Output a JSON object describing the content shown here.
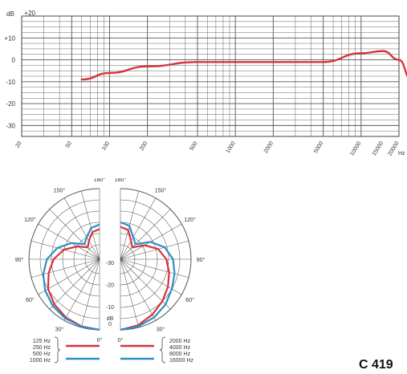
{
  "colors": {
    "red": "#d8323c",
    "blue": "#2b8fc8",
    "grid": "#555555"
  },
  "model": "C 419",
  "chart_data": [
    {
      "type": "line",
      "xscale": "log",
      "ylabel": "dB",
      "xunit": "Hz",
      "xlim": [
        20,
        20000
      ],
      "ylim": [
        -35,
        20
      ],
      "x_ticks": [
        "20",
        "50",
        "100",
        "200",
        "500",
        "1000",
        "2000",
        "5000",
        "10000",
        "15000",
        "20000"
      ],
      "y_ticks": [
        "+20",
        "+10",
        "0",
        "-10",
        "-20",
        "-30"
      ],
      "grid": true,
      "series": [
        {
          "color": "#d8323c",
          "x": [
            60,
            100,
            200,
            500,
            1000,
            2000,
            5000,
            10000,
            15000,
            20000,
            25000
          ],
          "y": [
            -9,
            -6,
            -3,
            -1,
            -1,
            -1,
            -1,
            3,
            4,
            0,
            -9
          ]
        }
      ]
    },
    {
      "type": "polar",
      "angle_labels_left": [
        "180°",
        "150°",
        "120°",
        "90°",
        "60°",
        "30°",
        "0°"
      ],
      "angle_labels_right": [
        "180°",
        "150°",
        "120°",
        "90°",
        "60°",
        "30°",
        "0°"
      ],
      "db_labels": [
        "-30",
        "-20",
        "-10",
        "dB",
        "0"
      ],
      "legend_left": [
        "125 Hz",
        "250 Hz",
        "500 Hz",
        "1000 Hz"
      ],
      "legend_right": [
        "2000 Hz",
        "4000 Hz",
        "8000 Hz",
        "16000 Hz"
      ],
      "left_series": [
        {
          "name": "250 Hz",
          "color": "#d8323c",
          "angles": [
            0,
            15,
            30,
            45,
            60,
            75,
            90,
            105,
            120,
            135,
            150,
            165,
            180
          ],
          "db": [
            0,
            -0.5,
            -1.5,
            -3,
            -5,
            -8,
            -11,
            -15,
            -20,
            -24,
            -22,
            -19,
            -18
          ]
        },
        {
          "name": "1000 Hz",
          "color": "#2b8fc8",
          "angles": [
            0,
            15,
            30,
            45,
            60,
            75,
            90,
            105,
            120,
            135,
            150,
            165,
            180
          ],
          "db": [
            0,
            -0.3,
            -1,
            -2,
            -3.5,
            -5.5,
            -8,
            -12,
            -17,
            -22,
            -20,
            -17,
            -16
          ]
        }
      ],
      "right_series": [
        {
          "name": "4000 Hz",
          "color": "#d8323c",
          "angles": [
            0,
            15,
            30,
            45,
            60,
            75,
            90,
            105,
            120,
            135,
            150,
            165,
            180
          ],
          "db": [
            0,
            -1,
            -3,
            -5,
            -7,
            -9,
            -11,
            -14,
            -19,
            -24,
            -22,
            -18,
            -17
          ]
        },
        {
          "name": "16000 Hz",
          "color": "#2b8fc8",
          "angles": [
            0,
            15,
            30,
            45,
            60,
            75,
            90,
            105,
            120,
            135,
            150,
            165,
            180
          ],
          "db": [
            0,
            -0.5,
            -1.5,
            -3,
            -5,
            -6.5,
            -8,
            -11,
            -16,
            -22,
            -20,
            -16,
            -15
          ]
        }
      ]
    }
  ]
}
